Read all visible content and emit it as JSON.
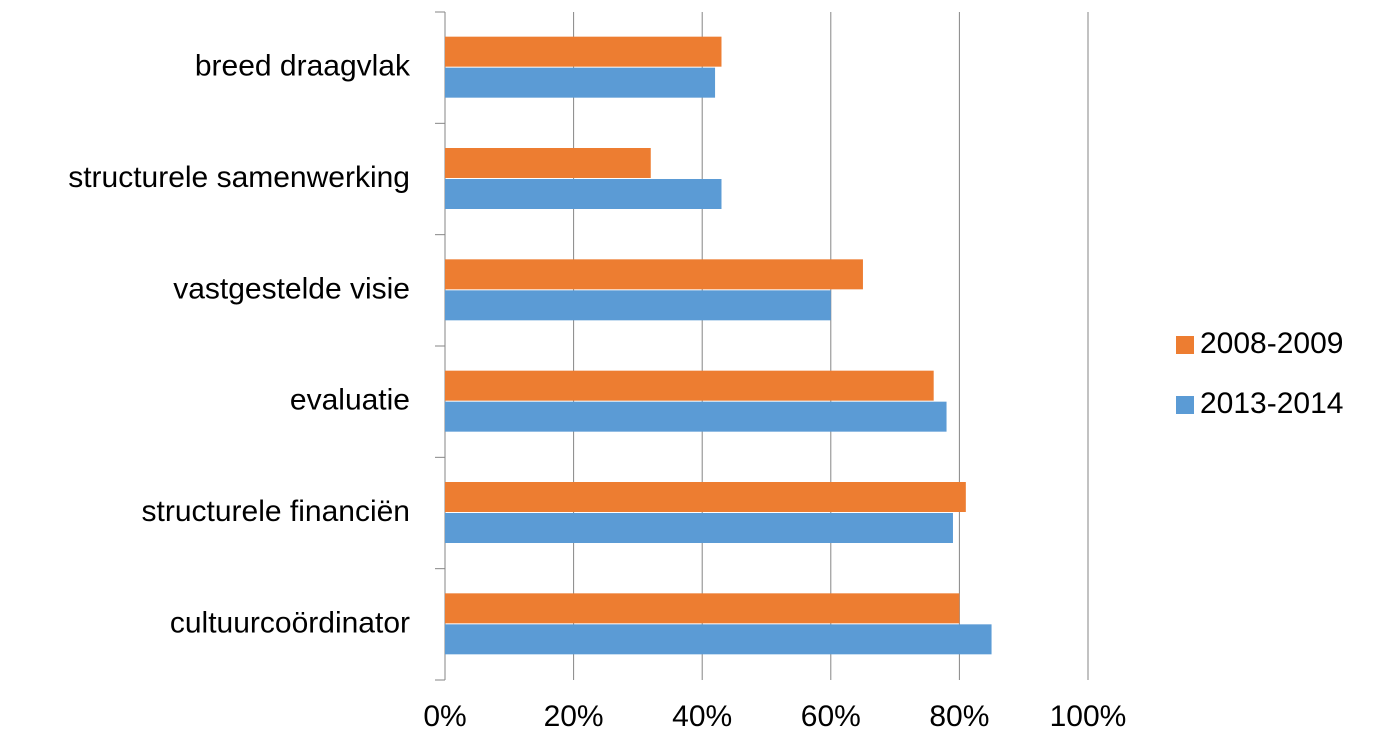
{
  "chart_data": {
    "type": "hbar",
    "categories": [
      "breed draagvlak",
      "structurele samenwerking",
      "vastgestelde visie",
      "evaluatie",
      "structurele financiën",
      "cultuurcoördinator"
    ],
    "series": [
      {
        "name": "2008-2009",
        "color": "#ed7d31",
        "values": [
          43,
          32,
          65,
          76,
          81,
          80
        ]
      },
      {
        "name": "2013-2014",
        "color": "#5b9bd5",
        "values": [
          42,
          43,
          60,
          78,
          79,
          85
        ]
      }
    ],
    "xlim": [
      0,
      100
    ],
    "xticks": [
      {
        "value": 0,
        "label": "0%"
      },
      {
        "value": 20,
        "label": "20%"
      },
      {
        "value": 40,
        "label": "40%"
      },
      {
        "value": 60,
        "label": "60%"
      },
      {
        "value": 80,
        "label": "80%"
      },
      {
        "value": 100,
        "label": "100%"
      }
    ],
    "grid": true,
    "legend": "right"
  }
}
